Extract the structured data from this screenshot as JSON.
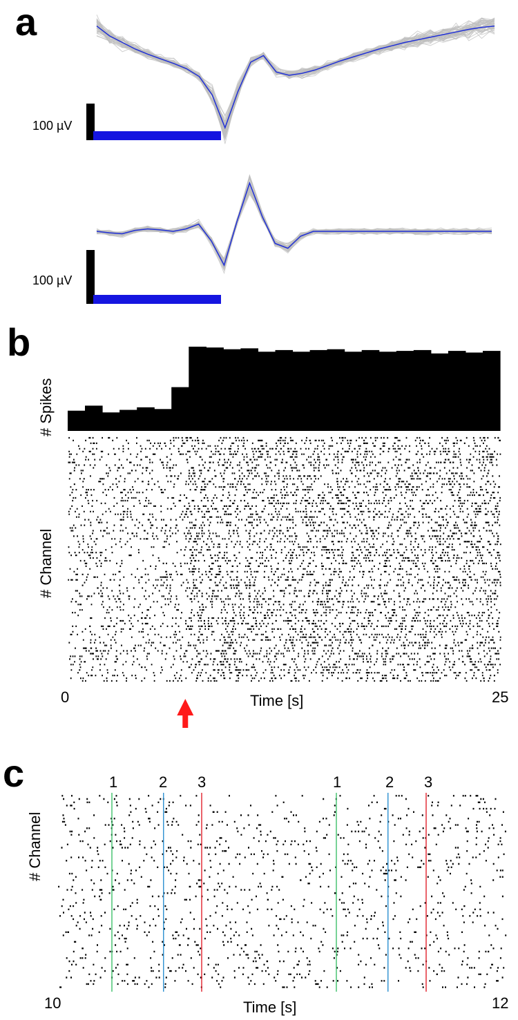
{
  "panels": {
    "a": {
      "label": "a"
    },
    "b": {
      "label": "b"
    },
    "c": {
      "label": "c"
    }
  },
  "chart_data": [
    {
      "type": "line",
      "panel": "a",
      "name": "waveform-top",
      "scale_label": "100 µV",
      "scale_bar_value_uV": 100,
      "series": [
        {
          "name": "",
          "role": "mean",
          "color": "#1f2fd6",
          "values": [
            0.55,
            0.4,
            0.3,
            0.2,
            0.12,
            0.05,
            -0.02,
            -0.1,
            -0.22,
            -0.5,
            -1.0,
            -0.45,
            0.0,
            0.1,
            -0.15,
            -0.2,
            -0.17,
            -0.12,
            -0.05,
            0.02,
            0.08,
            0.14,
            0.2,
            0.25,
            0.3,
            0.34,
            0.38,
            0.42,
            0.46,
            0.5,
            0.53,
            0.55
          ]
        }
      ],
      "overlay": {
        "color": "#bdbdbd",
        "count": 40
      }
    },
    {
      "type": "line",
      "panel": "a",
      "name": "waveform-bottom",
      "scale_label": "100 µV",
      "scale_bar_value_uV": 100,
      "series": [
        {
          "name": "",
          "role": "mean",
          "color": "#1f2fd6",
          "values": [
            0.0,
            -0.03,
            -0.05,
            0.02,
            0.05,
            0.03,
            0.0,
            0.05,
            0.15,
            -0.2,
            -0.7,
            0.2,
            1.0,
            0.3,
            -0.25,
            -0.35,
            -0.1,
            0.0,
            0.0,
            0.0,
            0.0,
            0.0,
            0.0,
            0.0,
            0.0,
            0.0,
            0.0,
            0.0,
            0.0,
            0.0,
            0.0,
            0.0
          ]
        }
      ],
      "overlay": {
        "color": "#bdbdbd",
        "count": 40
      }
    },
    {
      "type": "bar",
      "panel": "b",
      "name": "spike-histogram",
      "ylabel": "# Spikes",
      "bar_color": "#000000",
      "values": [
        0.24,
        0.3,
        0.22,
        0.25,
        0.28,
        0.26,
        0.52,
        1.0,
        0.99,
        0.97,
        0.98,
        0.94,
        0.96,
        0.94,
        0.96,
        0.97,
        0.94,
        0.96,
        0.94,
        0.95,
        0.96,
        0.92,
        0.95,
        0.93,
        0.95
      ]
    },
    {
      "type": "scatter",
      "panel": "b",
      "name": "raster-long",
      "xlabel": "Time [s]",
      "ylabel": "# Channel",
      "xlim": [
        0,
        25
      ],
      "tick_labels": [
        "0",
        "25"
      ],
      "stimulus_time_s": 6.8,
      "stimulus_color": "#ff1a1a",
      "rates": {
        "before": 0.45,
        "after": 1.0
      }
    },
    {
      "type": "scatter",
      "panel": "c",
      "name": "raster-zoom",
      "xlabel": "Time [s]",
      "ylabel": "# Channel",
      "xlim": [
        10,
        12
      ],
      "tick_labels": [
        "10",
        "12"
      ],
      "events": [
        {
          "label": "1",
          "t": 10.24,
          "color": "#3dbf6a"
        },
        {
          "label": "2",
          "t": 10.47,
          "color": "#2a8fd0"
        },
        {
          "label": "3",
          "t": 10.64,
          "color": "#e0202a"
        },
        {
          "label": "1",
          "t": 11.24,
          "color": "#3dbf6a"
        },
        {
          "label": "2",
          "t": 11.47,
          "color": "#2a8fd0"
        },
        {
          "label": "3",
          "t": 11.64,
          "color": "#e0202a"
        }
      ]
    }
  ]
}
